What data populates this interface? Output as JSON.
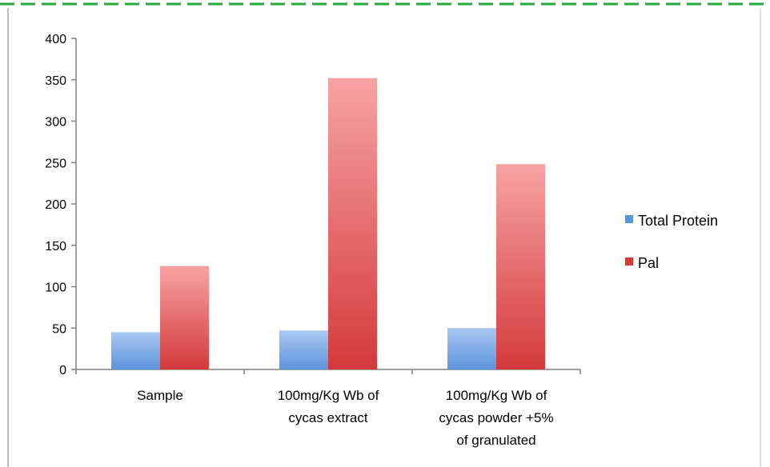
{
  "chart_data": {
    "type": "bar",
    "categories": [
      [
        "Sample"
      ],
      [
        "100mg/Kg Wb of",
        "cycas extract"
      ],
      [
        "100mg/Kg Wb of",
        "cycas powder +5%",
        "of granulated"
      ]
    ],
    "series": [
      {
        "name": "Total Protein",
        "values": [
          45,
          47,
          50
        ]
      },
      {
        "name": "Pal",
        "values": [
          125,
          352,
          248
        ]
      }
    ],
    "title": "",
    "xlabel": "",
    "ylabel": "",
    "ylim": [
      0,
      400
    ],
    "yticks": [
      0,
      50,
      100,
      150,
      200,
      250,
      300,
      350,
      400
    ],
    "grid": false,
    "legend_position": "right"
  },
  "colors": {
    "total_protein_top": "#a9c8f2",
    "total_protein_bottom": "#5d93dc",
    "pal_top": "#f7a3a3",
    "pal_bottom": "#d43a3a",
    "frame_border": "#22a83a",
    "axis": "#808080"
  }
}
